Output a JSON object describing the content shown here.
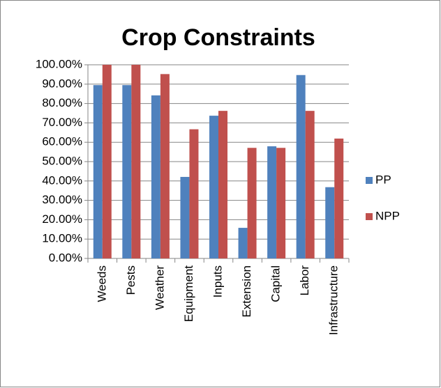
{
  "chart_data": {
    "type": "bar",
    "title": "Crop Constraints",
    "categories": [
      "Weeds",
      "Pests",
      "Weather",
      "Equipment",
      "Inputs",
      "Extension",
      "Capital",
      "Labor",
      "Infrastructure"
    ],
    "series": [
      {
        "name": "PP",
        "color": "#4f81bd",
        "values": [
          89.5,
          89.5,
          84.2,
          42.1,
          73.7,
          15.8,
          57.9,
          94.7,
          36.8
        ]
      },
      {
        "name": "NPP",
        "color": "#c0504d",
        "values": [
          100,
          100,
          95.2,
          66.7,
          76.2,
          57.1,
          57.1,
          76.2,
          61.9
        ]
      }
    ],
    "ylim": [
      0,
      100
    ],
    "yticks": [
      {
        "value": 0,
        "label": "0.00%"
      },
      {
        "value": 10,
        "label": "10.00%"
      },
      {
        "value": 20,
        "label": "20.00%"
      },
      {
        "value": 30,
        "label": "30.00%"
      },
      {
        "value": 40,
        "label": "40.00%"
      },
      {
        "value": 50,
        "label": "50.00%"
      },
      {
        "value": 60,
        "label": "60.00%"
      },
      {
        "value": 70,
        "label": "70.00%"
      },
      {
        "value": 80,
        "label": "80.00%"
      },
      {
        "value": 90,
        "label": "90.00%"
      },
      {
        "value": 100,
        "label": "100.00%"
      }
    ],
    "grid": true,
    "legend": "right"
  }
}
